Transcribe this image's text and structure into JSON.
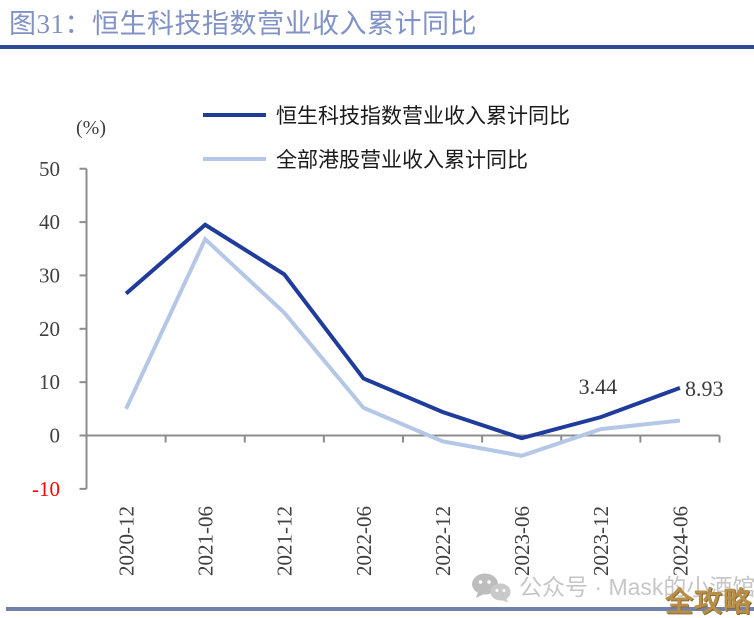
{
  "header": {
    "title": "图31：恒生科技指数营业收入累计同比"
  },
  "chart_data": {
    "type": "line",
    "unit_label": "(%)",
    "categories": [
      "2020-12",
      "2021-06",
      "2021-12",
      "2022-06",
      "2022-12",
      "2023-06",
      "2023-12",
      "2024-06"
    ],
    "series": [
      {
        "name": "恒生科技指数营业收入累计同比",
        "color": "#1f3c9b",
        "values": [
          26.6,
          39.5,
          30.2,
          10.7,
          4.4,
          -0.5,
          3.44,
          8.93
        ]
      },
      {
        "name": "全部港股营业收入累计同比",
        "color": "#b4c7e7",
        "values": [
          5.0,
          36.8,
          23.0,
          5.2,
          -1.1,
          -3.8,
          1.2,
          2.8
        ]
      }
    ],
    "y_ticks": [
      50,
      40,
      30,
      20,
      10,
      0,
      -10
    ],
    "ylim": [
      -10,
      50
    ],
    "grid": "off",
    "legend_position": "top",
    "annotations": [
      {
        "series": 0,
        "index": 6,
        "text": "3.44",
        "placement": "above"
      },
      {
        "series": 0,
        "index": 7,
        "text": "8.93",
        "placement": "right"
      }
    ]
  },
  "watermark": {
    "text": "公众号 · Mask的小酒馆",
    "badge": "全攻略"
  },
  "colors": {
    "title": "#8092c6",
    "title_rule": "#2e4a96",
    "axis": "#8c8c8c",
    "tick_label": "#3f3f3f",
    "negative_tick_label": "#ff0000",
    "data_label": "#3a3a3a",
    "watermark_text": "#c6c6c6",
    "badge_text": "#b88f49",
    "bottom_rule": "#7182a9"
  }
}
